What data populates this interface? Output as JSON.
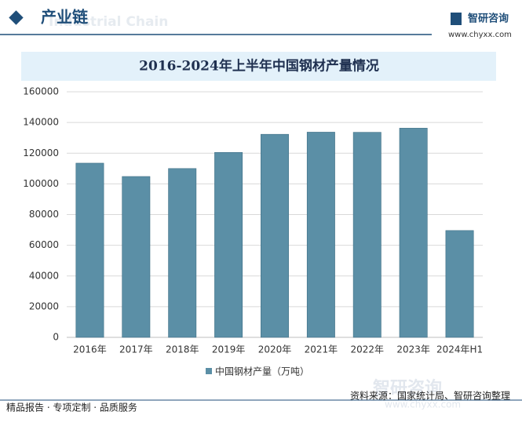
{
  "header": {
    "title": "产业链",
    "subtitle": "Industrial Chain",
    "brand": "智研咨询",
    "url": "www.chyxx.com"
  },
  "chart_data": {
    "type": "bar",
    "title": "2016-2024年上半年中国钢材产量情况",
    "categories": [
      "2016年",
      "2017年",
      "2018年",
      "2019年",
      "2020年",
      "2021年",
      "2022年",
      "2023年",
      "2024年H1"
    ],
    "series": [
      {
        "name": "中国钢材产量（万吨）",
        "color": "#5b8fa6",
        "values": [
          113500,
          104800,
          110000,
          120500,
          132300,
          133700,
          133600,
          136300,
          69600
        ]
      }
    ],
    "ylim": [
      0,
      160000
    ],
    "yticks": [
      0,
      20000,
      40000,
      60000,
      80000,
      100000,
      120000,
      140000,
      160000
    ],
    "grid": true
  },
  "footer": {
    "left": "精品报告 · 专项定制 · 品质服务",
    "source": "资料来源：国家统计局、智研咨询整理",
    "watermark": "智研咨询",
    "watermark_url": "www.chyxx.com"
  }
}
